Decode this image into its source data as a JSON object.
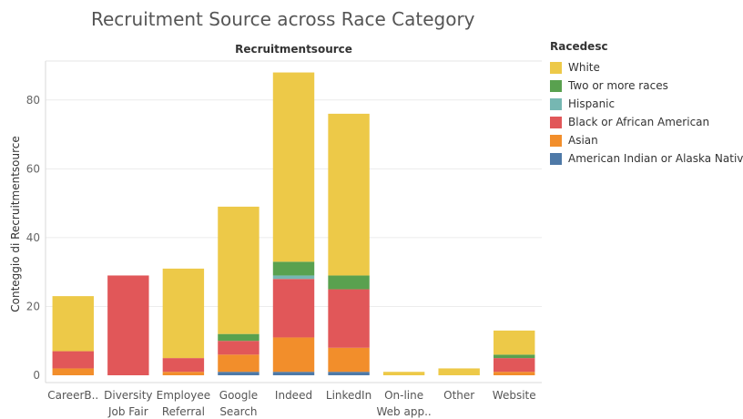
{
  "chart_data": {
    "type": "bar",
    "stacked": true,
    "title": "Recruitment Source across Race Category",
    "top_label": "Recruitmentsource",
    "ylabel": "Conteggio di Recruitmentsource",
    "ylim": [
      0,
      90
    ],
    "yticks": [
      0,
      20,
      40,
      60,
      80
    ],
    "grid": true,
    "legend_title": "Racedesc",
    "legend_position": "right",
    "categories": [
      [
        "CareerB.."
      ],
      [
        "Diversity",
        "Job Fair"
      ],
      [
        "Employee",
        "Referral"
      ],
      [
        "Google",
        "Search"
      ],
      [
        "Indeed"
      ],
      [
        "LinkedIn"
      ],
      [
        "On-line",
        "Web app.."
      ],
      [
        "Other"
      ],
      [
        "Website"
      ]
    ],
    "series": [
      {
        "name": "American Indian or Alaska Native",
        "color": "#4e79a7",
        "values": [
          0,
          0,
          0,
          1,
          1,
          1,
          0,
          0,
          0
        ]
      },
      {
        "name": "Asian",
        "color": "#f28e2b",
        "values": [
          2,
          0,
          1,
          5,
          10,
          7,
          0,
          0,
          1
        ]
      },
      {
        "name": "Black or African American",
        "color": "#e15759",
        "values": [
          5,
          29,
          4,
          4,
          17,
          17,
          0,
          0,
          4
        ]
      },
      {
        "name": "Hispanic",
        "color": "#76b7b2",
        "values": [
          0,
          0,
          0,
          0,
          1,
          0,
          0,
          0,
          0
        ]
      },
      {
        "name": "Two or more races",
        "color": "#59a14f",
        "values": [
          0,
          0,
          0,
          2,
          4,
          4,
          0,
          0,
          1
        ]
      },
      {
        "name": "White",
        "color": "#edc948",
        "values": [
          16,
          0,
          26,
          37,
          55,
          47,
          1,
          2,
          7
        ]
      }
    ]
  }
}
